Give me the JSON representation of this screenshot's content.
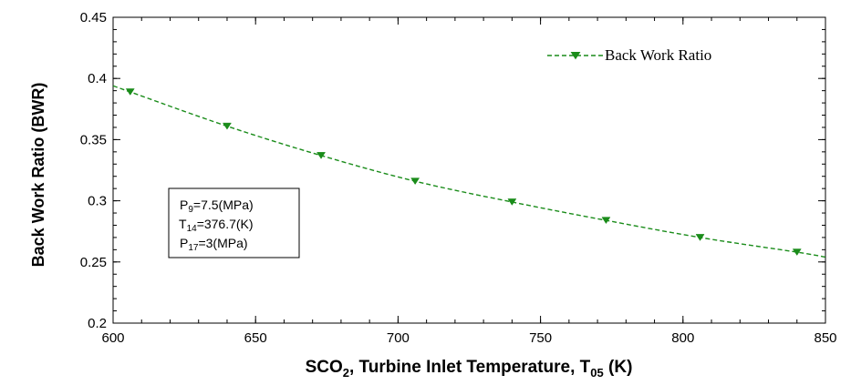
{
  "chart_data": {
    "type": "line",
    "title": "",
    "xlabel": {
      "main": "SCO",
      "sub1": "2",
      "mid": ", Turbine Inlet Temperature, T",
      "sub2": "05",
      "end": " (K)"
    },
    "ylabel": "Back Work Ratio (BWR)",
    "xlim": [
      600,
      850
    ],
    "ylim": [
      0.2,
      0.45
    ],
    "x_ticks": [
      600,
      650,
      700,
      750,
      800,
      850
    ],
    "x_tick_labels": [
      "600",
      "650",
      "700",
      "750",
      "800",
      "850"
    ],
    "y_ticks": [
      0.2,
      0.25,
      0.3,
      0.35,
      0.4,
      0.45
    ],
    "y_tick_labels": [
      "0.2",
      "0.25",
      "0.3",
      "0.35",
      "0.4",
      "0.45"
    ],
    "x_minor_step": 10,
    "y_minor_step": 0.01,
    "series": [
      {
        "name": "Back Work Ratio",
        "color": "#1a8c1a",
        "line_style": "dashed",
        "marker": "triangle-down",
        "x": [
          600,
          606,
          640,
          673,
          706,
          740,
          773,
          806,
          840,
          850
        ],
        "values": [
          0.394,
          0.389,
          0.361,
          0.337,
          0.316,
          0.299,
          0.284,
          0.27,
          0.258,
          0.254
        ],
        "marker_x": [
          606,
          640,
          673,
          706,
          740,
          773,
          806,
          840
        ],
        "marker_values": [
          0.389,
          0.361,
          0.337,
          0.316,
          0.299,
          0.284,
          0.27,
          0.258
        ]
      }
    ],
    "legend": {
      "position": "top-right",
      "label": "Back Work Ratio"
    },
    "annotation": {
      "lines": [
        {
          "pre": "P",
          "sub": "9",
          "post": "=7.5(MPa)"
        },
        {
          "pre": "T",
          "sub": "14",
          "post": "=376.7(K)"
        },
        {
          "pre": "P",
          "sub": "17",
          "post": "=3(MPa)"
        }
      ]
    }
  }
}
